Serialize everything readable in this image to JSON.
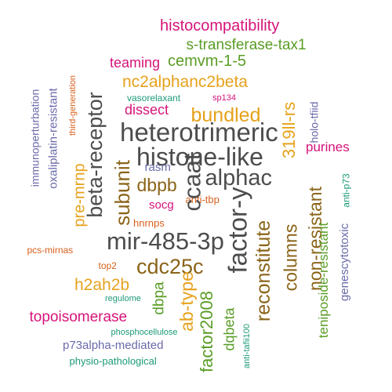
{
  "palette": {
    "dark_gray": "#4d4d4d",
    "brown": "#8a6418",
    "gold": "#e6a21c",
    "green": "#5a9d26",
    "magenta": "#d6147a",
    "purple": "#6a6aaa",
    "orange": "#d8601c",
    "teal": "#1c9a78"
  },
  "words": [
    {
      "text": "histocompatibility",
      "color": "magenta"
    },
    {
      "text": "s-transferase-tax1",
      "color": "green"
    },
    {
      "text": "teaming",
      "color": "magenta"
    },
    {
      "text": "cemvm-1-5",
      "color": "green"
    },
    {
      "text": "nc2alphanc2beta",
      "color": "gold"
    },
    {
      "text": "vasorelaxant",
      "color": "teal"
    },
    {
      "text": "sp134",
      "color": "magenta"
    },
    {
      "text": "dissect",
      "color": "magenta"
    },
    {
      "text": "bundled",
      "color": "gold"
    },
    {
      "text": "heterotrimeric",
      "color": "dark_gray"
    },
    {
      "text": "histone-like",
      "color": "dark_gray"
    },
    {
      "text": "alphac",
      "color": "dark_gray"
    },
    {
      "text": "dbpb",
      "color": "brown"
    },
    {
      "text": "rasm",
      "color": "purple"
    },
    {
      "text": "purines",
      "color": "magenta"
    },
    {
      "text": "socg",
      "color": "magenta"
    },
    {
      "text": "anti-tbp",
      "color": "orange"
    },
    {
      "text": "hnrnps",
      "color": "orange"
    },
    {
      "text": "mir-485-3p",
      "color": "dark_gray"
    },
    {
      "text": "cdc25c",
      "color": "brown"
    },
    {
      "text": "pcs-mirnas",
      "color": "orange"
    },
    {
      "text": "top2",
      "color": "orange"
    },
    {
      "text": "h2ah2b",
      "color": "gold"
    },
    {
      "text": "regulome",
      "color": "teal"
    },
    {
      "text": "topoisomerase",
      "color": "magenta"
    },
    {
      "text": "phosphocellulose",
      "color": "teal"
    },
    {
      "text": "p73alpha-mediated",
      "color": "purple"
    },
    {
      "text": "physio-pathological",
      "color": "teal"
    },
    {
      "text": "immunoperturbation",
      "color": "purple"
    },
    {
      "text": "oxaliplatin-resistant",
      "color": "purple"
    },
    {
      "text": "third-generation",
      "color": "orange"
    },
    {
      "text": "pre-mrnp",
      "color": "gold"
    },
    {
      "text": "beta-receptor",
      "color": "dark_gray"
    },
    {
      "text": "subunit",
      "color": "brown"
    },
    {
      "text": "ccaat",
      "color": "dark_gray"
    },
    {
      "text": "factor-y",
      "color": "dark_gray"
    },
    {
      "text": "319ll-rs",
      "color": "gold"
    },
    {
      "text": "reconstitute",
      "color": "brown"
    },
    {
      "text": "columns",
      "color": "brown"
    },
    {
      "text": "non-resistant",
      "color": "brown"
    },
    {
      "text": "teniposide-resistant",
      "color": "green"
    },
    {
      "text": "holo-tfiid",
      "color": "purple"
    },
    {
      "text": "anti-p73",
      "color": "teal"
    },
    {
      "text": "genescytotoxic",
      "color": "purple"
    },
    {
      "text": "ab-type",
      "color": "gold"
    },
    {
      "text": "dbpa",
      "color": "green"
    },
    {
      "text": "factor2008",
      "color": "green"
    },
    {
      "text": "dqbeta",
      "color": "green"
    },
    {
      "text": "anti-tafii100",
      "color": "teal"
    }
  ]
}
